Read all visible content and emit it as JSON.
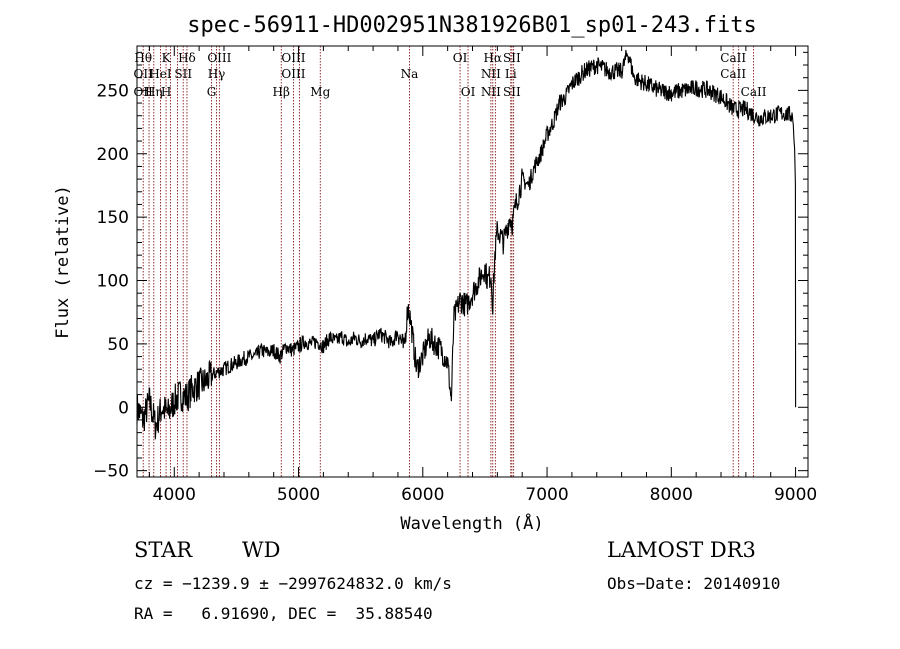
{
  "chart_data": {
    "type": "line",
    "title": "spec-56911-HD002951N381926B01_sp01-243.fits",
    "xlabel": "Wavelength (Å)",
    "ylabel": "Flux (relative)",
    "xlim": [
      3700,
      9100
    ],
    "ylim": [
      -55,
      285
    ],
    "xticks": [
      4000,
      5000,
      6000,
      7000,
      8000,
      9000
    ],
    "yticks": [
      -50,
      0,
      50,
      100,
      150,
      200,
      250
    ],
    "grid": false,
    "series": [
      {
        "x": [
          3700,
          3750,
          3800,
          3850,
          3900,
          3950,
          4000,
          4050,
          4100,
          4150,
          4200,
          4250,
          4300,
          4350,
          4400,
          4450,
          4500,
          4550,
          4600,
          4650,
          4700,
          4750,
          4800,
          4850,
          4900,
          4950,
          5000,
          5050,
          5100,
          5150,
          5200,
          5250,
          5300,
          5350,
          5400,
          5450,
          5500,
          5550,
          5600,
          5650,
          5700,
          5750,
          5800,
          5850,
          5880,
          5900,
          5950,
          6000,
          6050,
          6100,
          6150,
          6200,
          6230,
          6250,
          6300,
          6350,
          6400,
          6450,
          6500,
          6520,
          6550,
          6563,
          6580,
          6600,
          6650,
          6700,
          6720,
          6750,
          6800,
          6850,
          6900,
          6950,
          7000,
          7050,
          7100,
          7150,
          7200,
          7300,
          7400,
          7500,
          7600,
          7650,
          7700,
          7800,
          7900,
          8000,
          8100,
          8200,
          8300,
          8400,
          8500,
          8600,
          8700,
          8800,
          8900,
          8980,
          9000
        ],
        "y": [
          0,
          -10,
          5,
          -15,
          0,
          -5,
          5,
          10,
          8,
          15,
          18,
          20,
          25,
          28,
          30,
          33,
          35,
          38,
          40,
          40,
          45,
          43,
          45,
          40,
          48,
          45,
          48,
          52,
          50,
          52,
          48,
          55,
          52,
          56,
          50,
          55,
          52,
          55,
          52,
          58,
          55,
          50,
          60,
          45,
          80,
          70,
          30,
          40,
          55,
          50,
          45,
          35,
          5,
          70,
          85,
          80,
          90,
          100,
          110,
          100,
          105,
          80,
          120,
          140,
          130,
          150,
          145,
          160,
          180,
          175,
          190,
          200,
          215,
          225,
          240,
          245,
          255,
          265,
          270,
          265,
          265,
          280,
          260,
          255,
          250,
          248,
          250,
          252,
          250,
          245,
          235,
          235,
          228,
          230,
          232,
          230,
          180
        ]
      }
    ],
    "lines": [
      {
        "x": 3750,
        "upper": "Hθ",
        "middle": "OII",
        "lower": "OII"
      },
      {
        "x": 3797,
        "upper": "",
        "middle": "",
        "lower": ""
      },
      {
        "x": 3835,
        "upper": "",
        "middle": "",
        "lower": "Hη"
      },
      {
        "x": 3889,
        "upper": "",
        "middle": "HeI",
        "lower": ""
      },
      {
        "x": 3934,
        "upper": "K",
        "middle": "",
        "lower": "H"
      },
      {
        "x": 3969,
        "upper": "",
        "middle": "",
        "lower": ""
      },
      {
        "x": 4026,
        "upper": "",
        "middle": "",
        "lower": ""
      },
      {
        "x": 4072,
        "upper": "",
        "middle": "SII",
        "lower": ""
      },
      {
        "x": 4102,
        "upper": "Hδ",
        "middle": "",
        "lower": ""
      },
      {
        "x": 4300,
        "upper": "",
        "middle": "",
        "lower": "G"
      },
      {
        "x": 4340,
        "upper": "",
        "middle": "Hγ",
        "lower": ""
      },
      {
        "x": 4363,
        "upper": "OIII",
        "middle": "",
        "lower": ""
      },
      {
        "x": 4861,
        "upper": "",
        "middle": "",
        "lower": "Hβ"
      },
      {
        "x": 4959,
        "upper": "OIII",
        "middle": "OIII",
        "lower": ""
      },
      {
        "x": 5007,
        "upper": "",
        "middle": "",
        "lower": ""
      },
      {
        "x": 5175,
        "upper": "",
        "middle": "",
        "lower": "Mg"
      },
      {
        "x": 5893,
        "upper": "",
        "middle": "Na",
        "lower": ""
      },
      {
        "x": 6300,
        "upper": "OI",
        "middle": "",
        "lower": ""
      },
      {
        "x": 6364,
        "upper": "",
        "middle": "",
        "lower": "OI"
      },
      {
        "x": 6548,
        "upper": "",
        "middle": "NII",
        "lower": "NII"
      },
      {
        "x": 6563,
        "upper": "Hα",
        "middle": "",
        "lower": ""
      },
      {
        "x": 6584,
        "upper": "",
        "middle": "",
        "lower": ""
      },
      {
        "x": 6708,
        "upper": "",
        "middle": "Li",
        "lower": ""
      },
      {
        "x": 6717,
        "upper": "SII",
        "middle": "",
        "lower": "SII"
      },
      {
        "x": 6731,
        "upper": "",
        "middle": "",
        "lower": ""
      },
      {
        "x": 8498,
        "upper": "CaII",
        "middle": "CaII",
        "lower": ""
      },
      {
        "x": 8542,
        "upper": "",
        "middle": "",
        "lower": ""
      },
      {
        "x": 8662,
        "upper": "",
        "middle": "",
        "lower": "CaII"
      }
    ],
    "line_color": "#8b1a1a"
  },
  "info": {
    "class": "STAR",
    "subclass": "WD",
    "survey": "LAMOST DR3",
    "cz": "cz = −1239.9 ± −2997624832.0 km/s",
    "obs_date": "Obs−Date: 20140910",
    "radec": "RA =   6.91690, DEC =  35.88540"
  }
}
